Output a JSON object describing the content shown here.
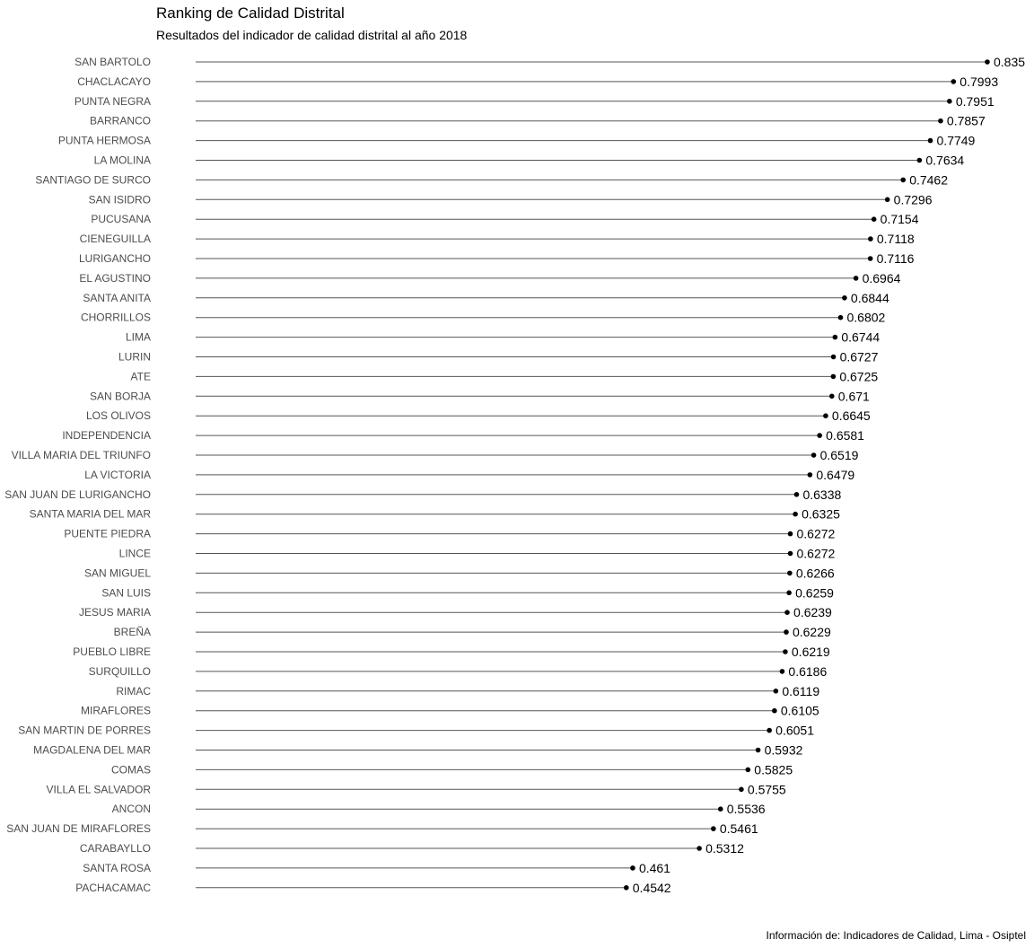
{
  "chart_data": {
    "type": "lollipop",
    "title": "Ranking de Calidad Distrital",
    "subtitle": "Resultados del indicador de calidad distrital al año 2018",
    "caption": "Información de: Indicadores de Calidad, Lima - Osiptel",
    "xlabel": "",
    "ylabel": "",
    "grid": false,
    "xlim": [
      0,
      0.835
    ],
    "categories": [
      "SAN BARTOLO",
      "CHACLACAYO",
      "PUNTA NEGRA",
      "BARRANCO",
      "PUNTA HERMOSA",
      "LA MOLINA",
      "SANTIAGO DE SURCO",
      "SAN ISIDRO",
      "PUCUSANA",
      "CIENEGUILLA",
      "LURIGANCHO",
      "EL AGUSTINO",
      "SANTA ANITA",
      "CHORRILLOS",
      "LIMA",
      "LURIN",
      "ATE",
      "SAN BORJA",
      "LOS OLIVOS",
      "INDEPENDENCIA",
      "VILLA MARIA DEL TRIUNFO",
      "LA VICTORIA",
      "SAN JUAN DE LURIGANCHO",
      "SANTA MARIA DEL MAR",
      "PUENTE PIEDRA",
      "LINCE",
      "SAN MIGUEL",
      "SAN LUIS",
      "JESUS MARIA",
      "BREÑA",
      "PUEBLO LIBRE",
      "SURQUILLO",
      "RIMAC",
      "MIRAFLORES",
      "SAN MARTIN DE PORRES",
      "MAGDALENA DEL MAR",
      "COMAS",
      "VILLA EL SALVADOR",
      "ANCON",
      "SAN JUAN DE MIRAFLORES",
      "CARABAYLLO",
      "SANTA ROSA",
      "PACHACAMAC"
    ],
    "values": [
      0.835,
      0.7993,
      0.7951,
      0.7857,
      0.7749,
      0.7634,
      0.7462,
      0.7296,
      0.7154,
      0.7118,
      0.7116,
      0.6964,
      0.6844,
      0.6802,
      0.6744,
      0.6727,
      0.6725,
      0.671,
      0.6645,
      0.6581,
      0.6519,
      0.6479,
      0.6338,
      0.6325,
      0.6272,
      0.6272,
      0.6266,
      0.6259,
      0.6239,
      0.6229,
      0.6219,
      0.6186,
      0.6119,
      0.6105,
      0.6051,
      0.5932,
      0.5825,
      0.5755,
      0.5536,
      0.5461,
      0.5312,
      0.461,
      0.4542
    ],
    "value_labels": [
      "0.835",
      "0.7993",
      "0.7951",
      "0.7857",
      "0.7749",
      "0.7634",
      "0.7462",
      "0.7296",
      "0.7154",
      "0.7118",
      "0.7116",
      "0.6964",
      "0.6844",
      "0.6802",
      "0.6744",
      "0.6727",
      "0.6725",
      "0.671",
      "0.6645",
      "0.6581",
      "0.6519",
      "0.6479",
      "0.6338",
      "0.6325",
      "0.6272",
      "0.6272",
      "0.6266",
      "0.6259",
      "0.6239",
      "0.6229",
      "0.6219",
      "0.6186",
      "0.6119",
      "0.6105",
      "0.6051",
      "0.5932",
      "0.5825",
      "0.5755",
      "0.5536",
      "0.5461",
      "0.5312",
      "0.461",
      "0.4542"
    ],
    "colors": {
      "dot": "#000000",
      "stem": "#555555",
      "category_label": "#4d4d4d",
      "value_label": "#000000"
    }
  }
}
